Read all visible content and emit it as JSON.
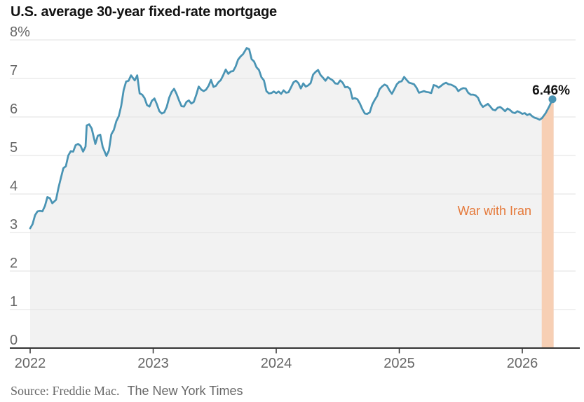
{
  "title": "U.S. average 30-year fixed-rate mortgage",
  "footer": {
    "source": "Source: Freddie Mac.",
    "credit": "The New York Times"
  },
  "annotations": {
    "war": "War with Iran",
    "last_value": "6.46%"
  },
  "colors": {
    "line": "#4a94b4",
    "area_fill": "#f2f2f2",
    "gridline": "#e2e2e2",
    "axis": "#333333",
    "band": "#f7cfb4",
    "war_text": "#e5793a",
    "tick_text": "#666666",
    "title_text": "#121212"
  },
  "chart_data": {
    "type": "line",
    "title": "U.S. average 30-year fixed-rate mortgage",
    "xlabel": "",
    "ylabel": "",
    "legend": "none",
    "grid": true,
    "y_axis": {
      "tick_labels": [
        "8%",
        "7",
        "6",
        "5",
        "4",
        "3",
        "2",
        "1",
        "0"
      ],
      "tick_values": [
        8,
        7,
        6,
        5,
        4,
        3,
        2,
        1,
        0
      ],
      "range": [
        0,
        8
      ]
    },
    "x_axis": {
      "tick_labels": [
        "2022",
        "2023",
        "2024",
        "2025",
        "2026"
      ],
      "tick_values": [
        2022,
        2023,
        2024,
        2025,
        2026
      ],
      "range": [
        2022,
        2026.43
      ]
    },
    "band": {
      "label": "War with Iran",
      "x_start": 2026.158,
      "x_end": 2026.255
    },
    "last_point": {
      "x": 2026.245,
      "y": 6.46,
      "label": "6.46%"
    },
    "series": [
      {
        "name": "30-year fixed-rate mortgage rate (%)",
        "points": [
          [
            2022.0,
            3.11
          ],
          [
            2022.02,
            3.22
          ],
          [
            2022.04,
            3.45
          ],
          [
            2022.06,
            3.55
          ],
          [
            2022.08,
            3.56
          ],
          [
            2022.1,
            3.55
          ],
          [
            2022.12,
            3.69
          ],
          [
            2022.14,
            3.92
          ],
          [
            2022.16,
            3.89
          ],
          [
            2022.18,
            3.76
          ],
          [
            2022.21,
            3.85
          ],
          [
            2022.23,
            4.16
          ],
          [
            2022.25,
            4.42
          ],
          [
            2022.27,
            4.67
          ],
          [
            2022.29,
            4.72
          ],
          [
            2022.31,
            5.0
          ],
          [
            2022.33,
            5.11
          ],
          [
            2022.35,
            5.1
          ],
          [
            2022.37,
            5.27
          ],
          [
            2022.39,
            5.3
          ],
          [
            2022.41,
            5.25
          ],
          [
            2022.43,
            5.1
          ],
          [
            2022.45,
            5.23
          ],
          [
            2022.46,
            5.78
          ],
          [
            2022.48,
            5.81
          ],
          [
            2022.5,
            5.7
          ],
          [
            2022.53,
            5.3
          ],
          [
            2022.55,
            5.51
          ],
          [
            2022.57,
            5.54
          ],
          [
            2022.59,
            5.22
          ],
          [
            2022.62,
            4.99
          ],
          [
            2022.64,
            5.13
          ],
          [
            2022.66,
            5.55
          ],
          [
            2022.68,
            5.66
          ],
          [
            2022.7,
            5.89
          ],
          [
            2022.72,
            6.02
          ],
          [
            2022.74,
            6.29
          ],
          [
            2022.76,
            6.7
          ],
          [
            2022.78,
            6.92
          ],
          [
            2022.8,
            6.94
          ],
          [
            2022.82,
            7.08
          ],
          [
            2022.85,
            6.95
          ],
          [
            2022.87,
            7.08
          ],
          [
            2022.89,
            6.61
          ],
          [
            2022.91,
            6.58
          ],
          [
            2022.93,
            6.49
          ],
          [
            2022.95,
            6.31
          ],
          [
            2022.97,
            6.27
          ],
          [
            2022.99,
            6.42
          ],
          [
            2023.01,
            6.48
          ],
          [
            2023.03,
            6.33
          ],
          [
            2023.05,
            6.15
          ],
          [
            2023.07,
            6.09
          ],
          [
            2023.09,
            6.12
          ],
          [
            2023.11,
            6.26
          ],
          [
            2023.13,
            6.5
          ],
          [
            2023.15,
            6.65
          ],
          [
            2023.17,
            6.73
          ],
          [
            2023.19,
            6.6
          ],
          [
            2023.21,
            6.43
          ],
          [
            2023.23,
            6.28
          ],
          [
            2023.25,
            6.27
          ],
          [
            2023.27,
            6.39
          ],
          [
            2023.29,
            6.43
          ],
          [
            2023.31,
            6.35
          ],
          [
            2023.33,
            6.39
          ],
          [
            2023.35,
            6.57
          ],
          [
            2023.37,
            6.79
          ],
          [
            2023.39,
            6.71
          ],
          [
            2023.41,
            6.67
          ],
          [
            2023.43,
            6.71
          ],
          [
            2023.45,
            6.81
          ],
          [
            2023.47,
            6.96
          ],
          [
            2023.49,
            6.78
          ],
          [
            2023.51,
            6.81
          ],
          [
            2023.53,
            6.9
          ],
          [
            2023.55,
            6.96
          ],
          [
            2023.57,
            7.09
          ],
          [
            2023.59,
            7.23
          ],
          [
            2023.61,
            7.12
          ],
          [
            2023.63,
            7.18
          ],
          [
            2023.65,
            7.19
          ],
          [
            2023.67,
            7.31
          ],
          [
            2023.69,
            7.49
          ],
          [
            2023.71,
            7.57
          ],
          [
            2023.73,
            7.63
          ],
          [
            2023.76,
            7.79
          ],
          [
            2023.78,
            7.76
          ],
          [
            2023.8,
            7.5
          ],
          [
            2023.82,
            7.44
          ],
          [
            2023.84,
            7.29
          ],
          [
            2023.86,
            7.22
          ],
          [
            2023.88,
            7.03
          ],
          [
            2023.9,
            6.95
          ],
          [
            2023.92,
            6.67
          ],
          [
            2023.94,
            6.61
          ],
          [
            2023.96,
            6.62
          ],
          [
            2023.98,
            6.66
          ],
          [
            2024.0,
            6.62
          ],
          [
            2024.02,
            6.66
          ],
          [
            2024.04,
            6.6
          ],
          [
            2024.06,
            6.69
          ],
          [
            2024.08,
            6.63
          ],
          [
            2024.1,
            6.64
          ],
          [
            2024.12,
            6.77
          ],
          [
            2024.14,
            6.9
          ],
          [
            2024.16,
            6.94
          ],
          [
            2024.18,
            6.88
          ],
          [
            2024.2,
            6.74
          ],
          [
            2024.22,
            6.87
          ],
          [
            2024.24,
            6.79
          ],
          [
            2024.26,
            6.82
          ],
          [
            2024.28,
            6.88
          ],
          [
            2024.3,
            7.1
          ],
          [
            2024.32,
            7.17
          ],
          [
            2024.34,
            7.22
          ],
          [
            2024.36,
            7.09
          ],
          [
            2024.38,
            7.02
          ],
          [
            2024.4,
            6.94
          ],
          [
            2024.42,
            7.03
          ],
          [
            2024.44,
            6.99
          ],
          [
            2024.46,
            6.95
          ],
          [
            2024.48,
            6.87
          ],
          [
            2024.5,
            6.86
          ],
          [
            2024.52,
            6.95
          ],
          [
            2024.54,
            6.89
          ],
          [
            2024.56,
            6.77
          ],
          [
            2024.58,
            6.78
          ],
          [
            2024.6,
            6.73
          ],
          [
            2024.62,
            6.47
          ],
          [
            2024.64,
            6.49
          ],
          [
            2024.66,
            6.46
          ],
          [
            2024.68,
            6.35
          ],
          [
            2024.7,
            6.2
          ],
          [
            2024.72,
            6.09
          ],
          [
            2024.74,
            6.08
          ],
          [
            2024.76,
            6.12
          ],
          [
            2024.78,
            6.32
          ],
          [
            2024.8,
            6.44
          ],
          [
            2024.82,
            6.54
          ],
          [
            2024.84,
            6.72
          ],
          [
            2024.86,
            6.79
          ],
          [
            2024.88,
            6.84
          ],
          [
            2024.9,
            6.81
          ],
          [
            2024.92,
            6.69
          ],
          [
            2024.94,
            6.6
          ],
          [
            2024.96,
            6.72
          ],
          [
            2024.98,
            6.85
          ],
          [
            2025.0,
            6.91
          ],
          [
            2025.02,
            6.93
          ],
          [
            2025.04,
            7.04
          ],
          [
            2025.06,
            6.96
          ],
          [
            2025.08,
            6.89
          ],
          [
            2025.1,
            6.87
          ],
          [
            2025.12,
            6.85
          ],
          [
            2025.14,
            6.76
          ],
          [
            2025.16,
            6.63
          ],
          [
            2025.18,
            6.65
          ],
          [
            2025.2,
            6.67
          ],
          [
            2025.22,
            6.65
          ],
          [
            2025.24,
            6.64
          ],
          [
            2025.26,
            6.62
          ],
          [
            2025.28,
            6.83
          ],
          [
            2025.3,
            6.81
          ],
          [
            2025.32,
            6.76
          ],
          [
            2025.34,
            6.81
          ],
          [
            2025.36,
            6.86
          ],
          [
            2025.38,
            6.89
          ],
          [
            2025.4,
            6.85
          ],
          [
            2025.42,
            6.84
          ],
          [
            2025.44,
            6.81
          ],
          [
            2025.46,
            6.77
          ],
          [
            2025.48,
            6.67
          ],
          [
            2025.5,
            6.72
          ],
          [
            2025.52,
            6.75
          ],
          [
            2025.54,
            6.74
          ],
          [
            2025.56,
            6.63
          ],
          [
            2025.58,
            6.58
          ],
          [
            2025.6,
            6.58
          ],
          [
            2025.62,
            6.56
          ],
          [
            2025.64,
            6.5
          ],
          [
            2025.66,
            6.35
          ],
          [
            2025.68,
            6.26
          ],
          [
            2025.7,
            6.3
          ],
          [
            2025.72,
            6.34
          ],
          [
            2025.74,
            6.27
          ],
          [
            2025.76,
            6.19
          ],
          [
            2025.78,
            6.17
          ],
          [
            2025.8,
            6.24
          ],
          [
            2025.82,
            6.26
          ],
          [
            2025.84,
            6.21
          ],
          [
            2025.86,
            6.15
          ],
          [
            2025.88,
            6.22
          ],
          [
            2025.9,
            6.18
          ],
          [
            2025.92,
            6.12
          ],
          [
            2025.94,
            6.1
          ],
          [
            2025.96,
            6.15
          ],
          [
            2025.98,
            6.12
          ],
          [
            2026.0,
            6.08
          ],
          [
            2026.02,
            6.1
          ],
          [
            2026.04,
            6.05
          ],
          [
            2026.06,
            6.08
          ],
          [
            2026.08,
            6.02
          ],
          [
            2026.1,
            5.98
          ],
          [
            2026.12,
            5.96
          ],
          [
            2026.14,
            5.93
          ],
          [
            2026.16,
            5.97
          ],
          [
            2026.19,
            6.1
          ],
          [
            2026.22,
            6.28
          ],
          [
            2026.245,
            6.46
          ]
        ]
      }
    ]
  }
}
